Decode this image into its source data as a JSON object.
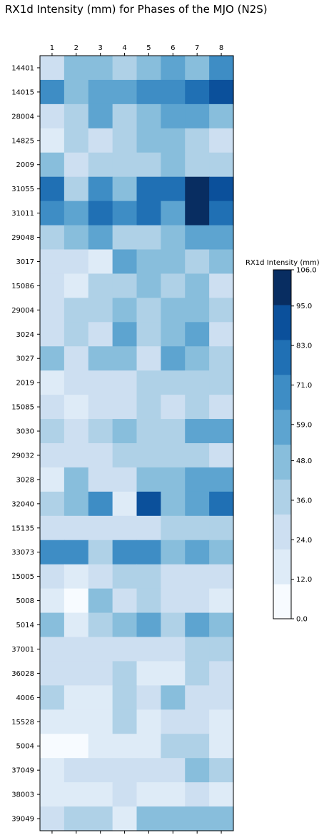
{
  "chart_data": {
    "type": "heatmap",
    "title": "RX1d Intensity (mm) for Phases of the MJO (N2S)",
    "columns": [
      "1",
      "2",
      "3",
      "4",
      "5",
      "6",
      "7",
      "8"
    ],
    "rows": [
      "14401",
      "14015",
      "28004",
      "14825",
      "2009",
      "31055",
      "31011",
      "29048",
      "3017",
      "15086",
      "29004",
      "3024",
      "3027",
      "2019",
      "15085",
      "3030",
      "29032",
      "3028",
      "32040",
      "15135",
      "33073",
      "15005",
      "5008",
      "5014",
      "37001",
      "36028",
      "4006",
      "15528",
      "5004",
      "37049",
      "38003",
      "39049"
    ],
    "values": [
      [
        26,
        48,
        48,
        36,
        48,
        59,
        48,
        71
      ],
      [
        71,
        48,
        59,
        59,
        71,
        71,
        83,
        95
      ],
      [
        26,
        36,
        59,
        36,
        48,
        59,
        59,
        48
      ],
      [
        18,
        36,
        26,
        36,
        48,
        48,
        36,
        26
      ],
      [
        48,
        26,
        36,
        36,
        36,
        48,
        36,
        36
      ],
      [
        83,
        36,
        71,
        48,
        83,
        83,
        106,
        95
      ],
      [
        71,
        59,
        83,
        71,
        83,
        59,
        106,
        83
      ],
      [
        36,
        48,
        59,
        36,
        36,
        48,
        59,
        59
      ],
      [
        26,
        26,
        18,
        59,
        48,
        48,
        36,
        48
      ],
      [
        26,
        18,
        36,
        36,
        48,
        36,
        48,
        26
      ],
      [
        26,
        36,
        36,
        48,
        36,
        48,
        48,
        36
      ],
      [
        26,
        36,
        26,
        59,
        36,
        48,
        59,
        26
      ],
      [
        48,
        26,
        48,
        48,
        26,
        59,
        48,
        36
      ],
      [
        18,
        26,
        26,
        26,
        36,
        36,
        36,
        36
      ],
      [
        26,
        18,
        26,
        26,
        36,
        26,
        36,
        26
      ],
      [
        36,
        26,
        36,
        48,
        36,
        36,
        59,
        59
      ],
      [
        26,
        26,
        26,
        36,
        36,
        36,
        36,
        26
      ],
      [
        18,
        48,
        26,
        26,
        48,
        48,
        59,
        59
      ],
      [
        36,
        48,
        71,
        18,
        95,
        48,
        59,
        83
      ],
      [
        26,
        26,
        26,
        26,
        26,
        36,
        36,
        36
      ],
      [
        71,
        71,
        36,
        71,
        71,
        48,
        59,
        48
      ],
      [
        26,
        18,
        26,
        36,
        36,
        26,
        26,
        26
      ],
      [
        18,
        6,
        48,
        26,
        36,
        26,
        26,
        18
      ],
      [
        48,
        18,
        36,
        48,
        59,
        36,
        59,
        48
      ],
      [
        26,
        26,
        26,
        26,
        26,
        26,
        36,
        36
      ],
      [
        26,
        26,
        26,
        36,
        18,
        18,
        36,
        26
      ],
      [
        36,
        18,
        18,
        36,
        26,
        48,
        26,
        26
      ],
      [
        18,
        18,
        18,
        36,
        18,
        26,
        26,
        18
      ],
      [
        6,
        6,
        18,
        18,
        18,
        36,
        36,
        18
      ],
      [
        18,
        26,
        26,
        26,
        26,
        26,
        48,
        36
      ],
      [
        18,
        18,
        18,
        26,
        18,
        18,
        26,
        18
      ],
      [
        26,
        36,
        36,
        18,
        48,
        48,
        48,
        48
      ]
    ],
    "colorbar": {
      "label": "RX1d Intensity (mm)",
      "ticks": [
        "0.0",
        "12.0",
        "24.0",
        "36.0",
        "48.0",
        "59.0",
        "71.0",
        "83.0",
        "95.0",
        "106.0"
      ],
      "range": [
        0,
        106
      ],
      "levels": 10,
      "colors": [
        "#f7fbff",
        "#deebf7",
        "#cddff1",
        "#afd1e7",
        "#88bedc",
        "#5da4d0",
        "#3e8dc5",
        "#2070b4",
        "#0b509b",
        "#082d61"
      ]
    }
  }
}
